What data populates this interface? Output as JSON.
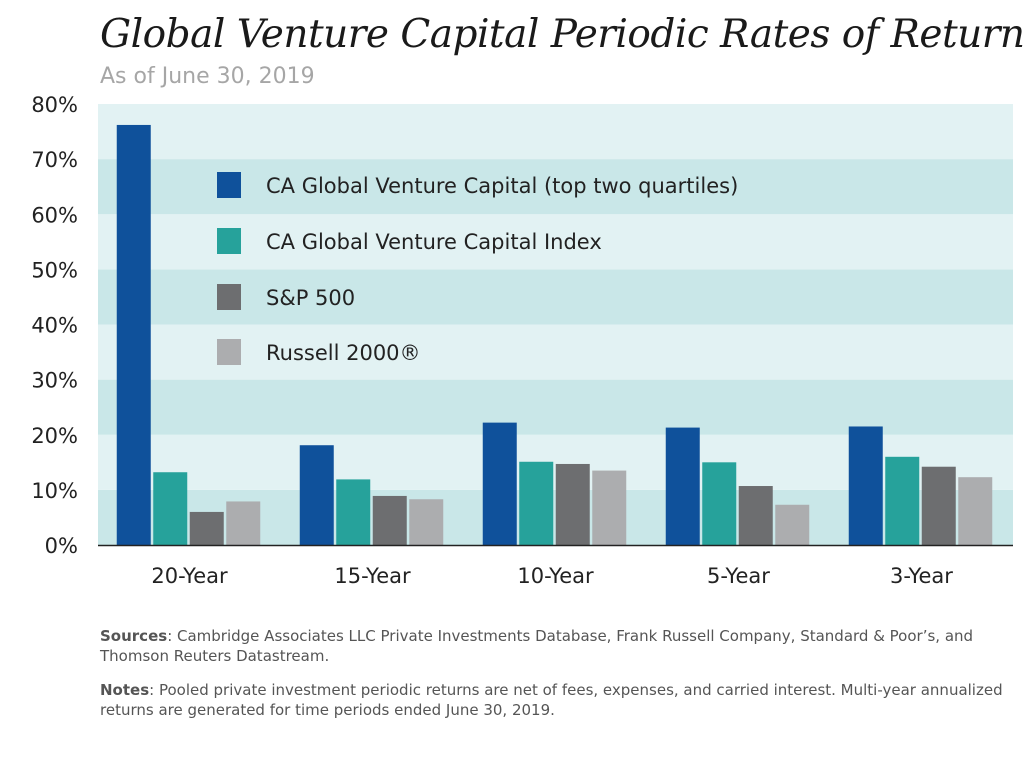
{
  "title": "Global Venture Capital Periodic Rates of Return",
  "subtitle": "As of June 30, 2019",
  "sources": {
    "label": "Sources",
    "text": ": Cambridge Associates LLC Private Investments Database, Frank Russell Company, Standard & Poor’s, and Thomson Reuters Datastream."
  },
  "notes": {
    "label": "Notes",
    "text": ": Pooled private investment periodic returns are net of fees, expenses, and carried interest. Multi-year annualized returns are generated for time periods ended June 30, 2019."
  },
  "chart_data": {
    "type": "bar",
    "categories": [
      "20-Year",
      "15-Year",
      "10-Year",
      "5-Year",
      "3-Year"
    ],
    "series": [
      {
        "name": "CA Global Venture Capital (top two quartiles)",
        "color": "#0f519b",
        "values": [
          76.2,
          18.1,
          22.2,
          21.3,
          21.5
        ]
      },
      {
        "name": "CA Global Venture Capital Index",
        "color": "#26a29b",
        "values": [
          13.2,
          11.9,
          15.1,
          15.0,
          16.0
        ]
      },
      {
        "name": "S&P 500",
        "color": "#6d6e70",
        "values": [
          6.0,
          8.9,
          14.7,
          10.7,
          14.2
        ]
      },
      {
        "name": "Russell 2000®",
        "color": "#acadaf",
        "values": [
          7.9,
          8.3,
          13.5,
          7.3,
          12.3
        ]
      }
    ],
    "ylim": [
      0,
      80
    ],
    "yticks": [
      "0%",
      "10%",
      "20%",
      "30%",
      "40%",
      "50%",
      "60%",
      "70%",
      "80%"
    ],
    "ytick_values": [
      0,
      10,
      20,
      30,
      40,
      50,
      60,
      70,
      80
    ],
    "grid": "alternating horizontal bands",
    "band_colors": [
      "#c9e7e8",
      "#e2f2f3"
    ],
    "legend_position": "top-center, inside plot",
    "xlabel": "",
    "ylabel": ""
  }
}
